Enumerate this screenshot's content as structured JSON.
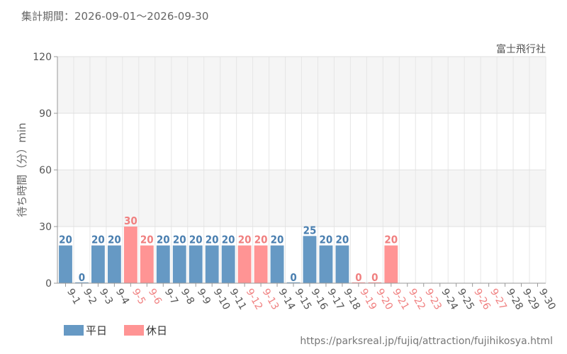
{
  "header": {
    "period_label": "集計期間：",
    "period_start": "2026-09-01",
    "period_sep": "〜",
    "period_end": "2026-09-30"
  },
  "source_url": "https://parksreal.jp/fujiq/attraction/fujihikosya.html",
  "colors": {
    "weekday": "#6699c4",
    "holiday": "#ff9494",
    "weekday_text": "#4a7fb0",
    "holiday_text": "#f08080"
  },
  "chart_data": {
    "type": "bar",
    "subtitle": "富士飛行社",
    "xlabel": "",
    "ylabel": "待ち時間（分）min",
    "ylim": [
      0,
      120
    ],
    "yticks": [
      0,
      30,
      60,
      90,
      120
    ],
    "grid": true,
    "legend_position": "bottom-left",
    "legend": [
      {
        "label": "平日",
        "kind": "weekday"
      },
      {
        "label": "休日",
        "kind": "holiday"
      }
    ],
    "categories": [
      "9-1",
      "9-2",
      "9-3",
      "9-4",
      "9-5",
      "9-6",
      "9-7",
      "9-8",
      "9-9",
      "9-10",
      "9-11",
      "9-12",
      "9-13",
      "9-14",
      "9-15",
      "9-16",
      "9-17",
      "9-18",
      "9-19",
      "9-20",
      "9-21",
      "9-22",
      "9-23",
      "9-24",
      "9-25",
      "9-26",
      "9-27",
      "9-28",
      "9-29",
      "9-30"
    ],
    "values": [
      20,
      0,
      20,
      20,
      30,
      20,
      20,
      20,
      20,
      20,
      20,
      20,
      20,
      20,
      0,
      25,
      20,
      20,
      0,
      0,
      20,
      null,
      null,
      null,
      null,
      null,
      null,
      null,
      null,
      null
    ],
    "day_type": [
      "weekday",
      "weekday",
      "weekday",
      "weekday",
      "holiday",
      "holiday",
      "weekday",
      "weekday",
      "weekday",
      "weekday",
      "weekday",
      "holiday",
      "holiday",
      "weekday",
      "weekday",
      "weekday",
      "weekday",
      "weekday",
      "holiday",
      "holiday",
      "holiday",
      "holiday",
      "holiday",
      "weekday",
      "weekday",
      "holiday",
      "holiday",
      "weekday",
      "weekday",
      "weekday"
    ]
  }
}
